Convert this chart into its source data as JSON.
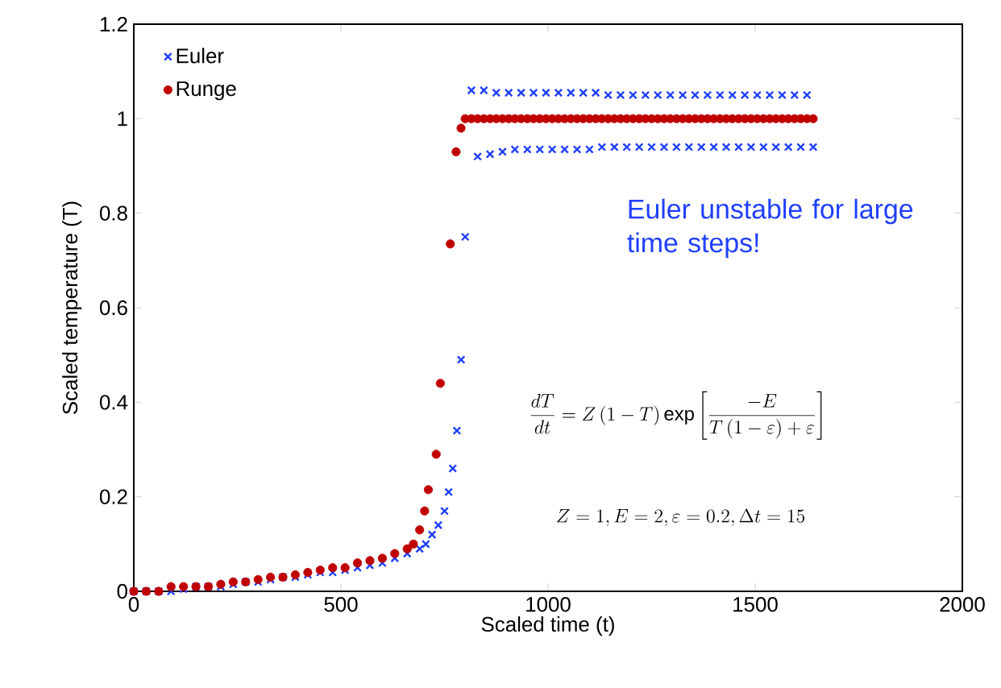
{
  "chart_data": {
    "type": "scatter",
    "xlabel": "Scaled time (t)",
    "ylabel": "Scaled temperature (T)",
    "xlim": [
      0,
      2000
    ],
    "ylim": [
      0,
      1.2
    ],
    "xticks": [
      0,
      500,
      1000,
      1500,
      2000
    ],
    "yticks": [
      0,
      0.2,
      0.4,
      0.6,
      0.8,
      1,
      1.2
    ],
    "grid": false,
    "legend": "top left",
    "annotations": [
      "Euler unstable for large time steps!",
      "\\frac{dT}{dt}=Z\\left(1-T\\right)\\exp\\left[\\frac{-E}{T\\left(1-\\varepsilon\\right)+\\varepsilon}\\right]",
      "Z=1,E=2,\\varepsilon=0.2,\\Delta t=15"
    ],
    "series": [
      {
        "name": "Euler",
        "color": "#1f3fff",
        "marker": "cross",
        "x": [
          0,
          30,
          60,
          90,
          120,
          150,
          180,
          210,
          240,
          270,
          300,
          330,
          360,
          390,
          420,
          450,
          480,
          510,
          540,
          570,
          600,
          630,
          660,
          690,
          705,
          720,
          735,
          750,
          760,
          770,
          780,
          790,
          800,
          815,
          830,
          845,
          860,
          875,
          890,
          905,
          920,
          935,
          950,
          965,
          980,
          995,
          1010,
          1025,
          1040,
          1055,
          1070,
          1085,
          1100,
          1115,
          1130,
          1145,
          1160,
          1175,
          1190,
          1205,
          1220,
          1235,
          1250,
          1265,
          1280,
          1295,
          1310,
          1325,
          1340,
          1355,
          1370,
          1385,
          1400,
          1415,
          1430,
          1445,
          1460,
          1475,
          1490,
          1505,
          1520,
          1535,
          1550,
          1565,
          1580,
          1595,
          1610,
          1625,
          1640
        ],
        "values": [
          0,
          0,
          0,
          0,
          0.005,
          0.01,
          0.01,
          0.01,
          0.015,
          0.02,
          0.02,
          0.025,
          0.03,
          0.03,
          0.035,
          0.04,
          0.04,
          0.045,
          0.05,
          0.055,
          0.06,
          0.07,
          0.08,
          0.09,
          0.1,
          0.12,
          0.14,
          0.17,
          0.21,
          0.26,
          0.34,
          0.49,
          0.75,
          1.06,
          0.92,
          1.06,
          0.925,
          1.055,
          0.93,
          1.055,
          0.935,
          1.055,
          0.935,
          1.055,
          0.935,
          1.055,
          0.935,
          1.055,
          0.935,
          1.055,
          0.935,
          1.055,
          0.935,
          1.055,
          0.94,
          1.05,
          0.94,
          1.05,
          0.94,
          1.05,
          0.94,
          1.05,
          0.94,
          1.05,
          0.94,
          1.05,
          0.94,
          1.05,
          0.94,
          1.05,
          0.94,
          1.05,
          0.94,
          1.05,
          0.94,
          1.05,
          0.94,
          1.05,
          0.94,
          1.05,
          0.94,
          1.05,
          0.94,
          1.05,
          0.94,
          1.05,
          0.94,
          1.05,
          0.94
        ]
      },
      {
        "name": "Runge",
        "color": "#c00000",
        "marker": "circle",
        "x": [
          0,
          30,
          60,
          90,
          120,
          150,
          180,
          210,
          240,
          270,
          300,
          330,
          360,
          390,
          420,
          450,
          480,
          510,
          540,
          570,
          600,
          630,
          660,
          675,
          690,
          702,
          711,
          730,
          740,
          764,
          778,
          790,
          800,
          815,
          830,
          845,
          860,
          875,
          890,
          905,
          920,
          935,
          950,
          965,
          980,
          995,
          1010,
          1025,
          1040,
          1055,
          1070,
          1085,
          1100,
          1115,
          1130,
          1145,
          1160,
          1175,
          1190,
          1205,
          1220,
          1235,
          1250,
          1265,
          1280,
          1295,
          1310,
          1325,
          1340,
          1355,
          1370,
          1385,
          1400,
          1415,
          1430,
          1445,
          1460,
          1475,
          1490,
          1505,
          1520,
          1535,
          1550,
          1565,
          1580,
          1595,
          1610,
          1625,
          1640
        ],
        "values": [
          0,
          0,
          0,
          0.01,
          0.01,
          0.01,
          0.01,
          0.015,
          0.02,
          0.02,
          0.025,
          0.03,
          0.03,
          0.035,
          0.04,
          0.045,
          0.05,
          0.05,
          0.06,
          0.065,
          0.07,
          0.08,
          0.09,
          0.1,
          0.13,
          0.17,
          0.215,
          0.29,
          0.44,
          0.735,
          0.93,
          0.98,
          1,
          1,
          1,
          1,
          1,
          1,
          1,
          1,
          1,
          1,
          1,
          1,
          1,
          1,
          1,
          1,
          1,
          1,
          1,
          1,
          1,
          1,
          1,
          1,
          1,
          1,
          1,
          1,
          1,
          1,
          1,
          1,
          1,
          1,
          1,
          1,
          1,
          1,
          1,
          1,
          1,
          1,
          1,
          1,
          1,
          1,
          1,
          1,
          1,
          1,
          1,
          1,
          1,
          1,
          1,
          1,
          1
        ]
      }
    ]
  }
}
